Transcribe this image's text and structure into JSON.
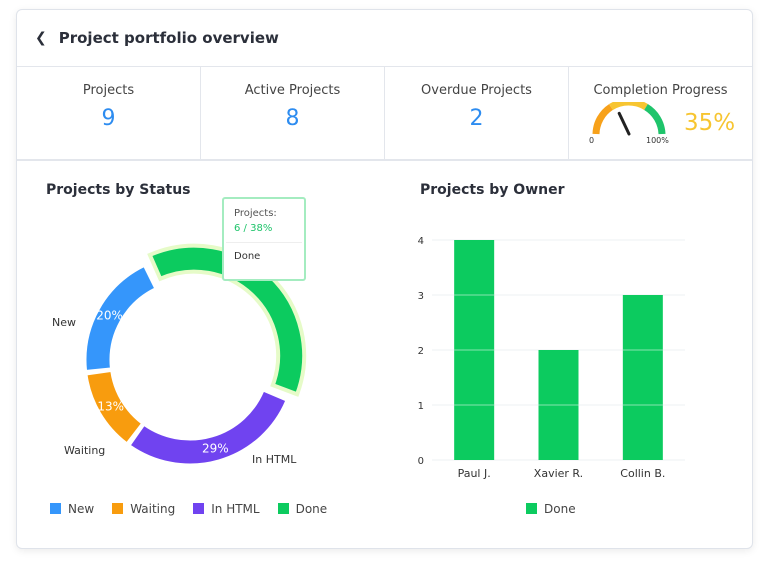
{
  "header": {
    "title": "Project portfolio overview",
    "back_icon": "chevron-left-icon"
  },
  "kpis": [
    {
      "label": "Projects",
      "value": "9"
    },
    {
      "label": "Active Projects",
      "value": "8"
    },
    {
      "label": "Overdue Projects",
      "value": "2"
    }
  ],
  "progress": {
    "label": "Completion Progress",
    "value": "35%",
    "fraction": 0.35,
    "min_label": "0",
    "max_label": "100%",
    "colors": [
      "#f7a11a",
      "#f7c531",
      "#1fc46b"
    ]
  },
  "status_chart": {
    "title": "Projects by Status",
    "tooltip": {
      "label": "Projects:",
      "value": "6 / 38%",
      "category": "Done"
    }
  },
  "owner_chart": {
    "title": "Projects by Owner"
  },
  "chart_data": [
    {
      "type": "pie",
      "title": "Projects by Status",
      "categories": [
        "Done",
        "In HTML",
        "Waiting",
        "New"
      ],
      "values": [
        38,
        29,
        13,
        20
      ],
      "labels": [
        "",
        "29%",
        "13%",
        "20%"
      ],
      "colors": [
        "#0ccb5f",
        "#7043f0",
        "#f89c0e",
        "#3596fb"
      ],
      "legend": [
        "New",
        "Waiting",
        "In HTML",
        "Done"
      ],
      "legend_colors": [
        "#3596fb",
        "#f89c0e",
        "#7043f0",
        "#0ccb5f"
      ],
      "legend_position": "bottom"
    },
    {
      "type": "bar",
      "title": "Projects by Owner",
      "categories": [
        "Paul J.",
        "Xavier R.",
        "Collin B."
      ],
      "series": [
        {
          "name": "Done",
          "values": [
            4,
            2,
            3
          ],
          "color": "#0ccb5f"
        }
      ],
      "ylim": [
        0,
        4
      ],
      "yticks": [
        "0",
        "1",
        "2",
        "3",
        "4"
      ],
      "grid": true,
      "legend_position": "bottom"
    }
  ]
}
